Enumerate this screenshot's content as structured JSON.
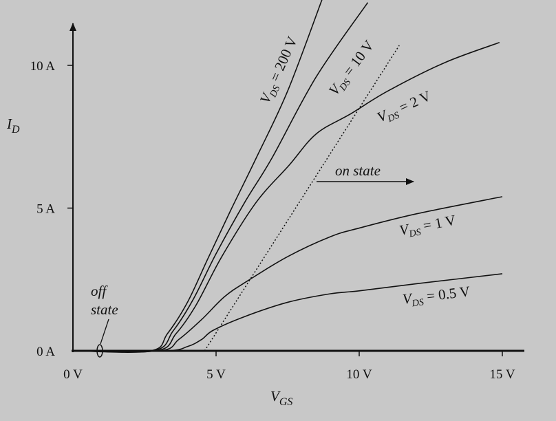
{
  "chart_data": {
    "type": "line",
    "xlabel": "V",
    "xlabel_sub": "GS",
    "ylabel": "I",
    "ylabel_sub": "D",
    "xlim": [
      0,
      15.7
    ],
    "ylim": [
      0,
      12.3
    ],
    "x_ticks": [
      {
        "v": 0,
        "label": "0 V"
      },
      {
        "v": 5,
        "label": "5 V"
      },
      {
        "v": 10,
        "label": "10 V"
      },
      {
        "v": 15,
        "label": "15 V"
      }
    ],
    "y_ticks": [
      {
        "v": 0,
        "label": "0 A"
      },
      {
        "v": 5,
        "label": "5 A"
      },
      {
        "v": 10,
        "label": "10 A"
      }
    ],
    "grid": false,
    "series": [
      {
        "name": "V_DS = 200 V",
        "label_main": "V",
        "label_sub": "DS",
        "label_rest": " = 200 V",
        "points": [
          [
            0,
            0
          ],
          [
            2.7,
            0
          ],
          [
            3.3,
            0.6
          ],
          [
            4,
            1.7
          ],
          [
            4.7,
            3.2
          ],
          [
            5.5,
            4.9
          ],
          [
            6.4,
            6.75
          ],
          [
            7.5,
            9.1
          ],
          [
            8.7,
            12.3
          ]
        ]
      },
      {
        "name": "V_DS = 10 V",
        "label_main": "V",
        "label_sub": "DS",
        "label_rest": " = 10 V",
        "points": [
          [
            0,
            0
          ],
          [
            2.8,
            0
          ],
          [
            3.5,
            0.7
          ],
          [
            4.2,
            1.8
          ],
          [
            5,
            3.4
          ],
          [
            6,
            5.2
          ],
          [
            6.95,
            6.75
          ],
          [
            8.5,
            9.6
          ],
          [
            10.3,
            12.2
          ]
        ]
      },
      {
        "name": "V_DS = 2 V",
        "label_main": "V",
        "label_sub": "DS",
        "label_rest": " = 2 V",
        "points": [
          [
            0,
            0
          ],
          [
            2.9,
            0
          ],
          [
            3.6,
            0.6
          ],
          [
            4.3,
            1.6
          ],
          [
            5.2,
            3.3
          ],
          [
            6.4,
            5.2
          ],
          [
            7.55,
            6.5
          ],
          [
            8.5,
            7.6
          ],
          [
            9.7,
            8.3
          ],
          [
            11,
            9.1
          ],
          [
            13,
            10.1
          ],
          [
            14.9,
            10.8
          ]
        ]
      },
      {
        "name": "V_DS = 1 V",
        "label_main": "V",
        "label_sub": "DS",
        "label_rest": " = 1 V",
        "points": [
          [
            0,
            0
          ],
          [
            3.0,
            0
          ],
          [
            3.7,
            0.4
          ],
          [
            4.5,
            1.1
          ],
          [
            5.3,
            1.9
          ],
          [
            6.1,
            2.45
          ],
          [
            7.5,
            3.3
          ],
          [
            9,
            4
          ],
          [
            10,
            4.3
          ],
          [
            12,
            4.8
          ],
          [
            15,
            5.4
          ]
        ]
      },
      {
        "name": "V_DS = 0.5 V",
        "label_main": "V",
        "label_sub": "DS",
        "label_rest": " = 0.5 V",
        "points": [
          [
            0,
            0
          ],
          [
            3.2,
            0
          ],
          [
            4,
            0.15
          ],
          [
            4.5,
            0.4
          ],
          [
            4.9,
            0.72
          ],
          [
            6,
            1.2
          ],
          [
            7.5,
            1.7
          ],
          [
            9,
            2.0
          ],
          [
            10,
            2.1
          ],
          [
            12,
            2.35
          ],
          [
            15,
            2.7
          ]
        ]
      }
    ],
    "boundary_line": {
      "style": "dotted",
      "points": [
        [
          4.6,
          0
        ],
        [
          11.4,
          10.7
        ]
      ]
    },
    "annotations": {
      "on_state": "on state",
      "off_state_1": "off",
      "off_state_2": "state"
    }
  }
}
